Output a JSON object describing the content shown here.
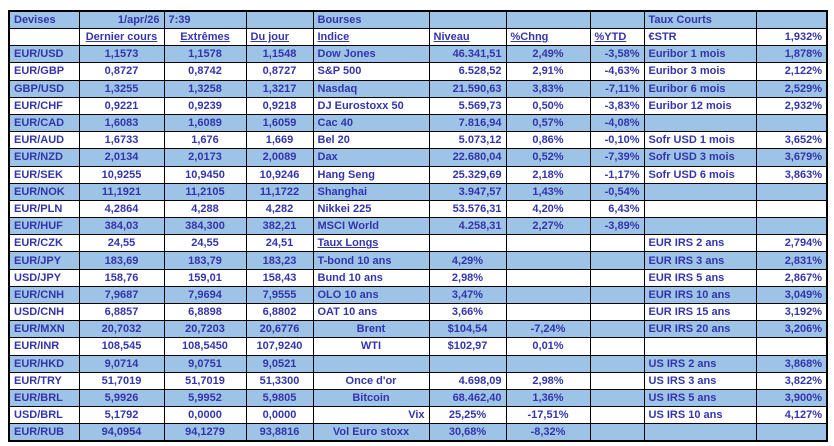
{
  "colors": {
    "row_blue": "#9DC3E6",
    "row_white": "#FFFFFF",
    "text_indigo": "#3434AC",
    "grid_border": "#000000"
  },
  "table": {
    "rows": [
      {
        "cells": [
          {
            "t": "Devises",
            "n": "section-title-devises"
          },
          {
            "t": "1/apr/26",
            "a": "r",
            "n": "date"
          },
          {
            "t": "7:39",
            "a": "l",
            "n": "time"
          },
          {
            "t": ""
          },
          {
            "t": "Bourses",
            "n": "section-title-bourses"
          },
          {
            "t": ""
          },
          {
            "t": ""
          },
          {
            "t": ""
          },
          {
            "t": "Taux Courts",
            "n": "section-title-taux-courts"
          },
          {
            "t": ""
          }
        ]
      },
      {
        "cells": [
          {
            "t": ""
          },
          {
            "t": "Dernier cours",
            "u": true,
            "n": "column-header"
          },
          {
            "t": "Extrêmes",
            "u": true,
            "n": "column-header"
          },
          {
            "t": "Du jour",
            "a": "l",
            "u": true,
            "n": "column-header"
          },
          {
            "t": "Indice",
            "u": true,
            "n": "column-header"
          },
          {
            "t": "Niveau",
            "a": "l",
            "u": true,
            "n": "column-header"
          },
          {
            "t": "%Chng",
            "a": "l",
            "u": true,
            "n": "column-header"
          },
          {
            "t": "%YTD",
            "a": "l",
            "u": true,
            "n": "column-header"
          },
          {
            "t": "€STR",
            "n": "rate-label"
          },
          {
            "t": "1,932%"
          }
        ]
      },
      {
        "cells": [
          {
            "t": "EUR/USD"
          },
          {
            "t": "1,1573"
          },
          {
            "t": "1,1578"
          },
          {
            "t": "1,1548"
          },
          {
            "t": "Dow Jones"
          },
          {
            "t": "46.341,51"
          },
          {
            "t": "2,49%"
          },
          {
            "t": "-3,58%"
          },
          {
            "t": "Euribor 1 mois"
          },
          {
            "t": "1,878%"
          }
        ]
      },
      {
        "cells": [
          {
            "t": "EUR/GBP"
          },
          {
            "t": "0,8727"
          },
          {
            "t": "0,8742"
          },
          {
            "t": "0,8727"
          },
          {
            "t": "S&P 500"
          },
          {
            "t": "6.528,52"
          },
          {
            "t": "2,91%"
          },
          {
            "t": "-4,63%"
          },
          {
            "t": "Euribor 3 mois"
          },
          {
            "t": "2,122%"
          }
        ]
      },
      {
        "cells": [
          {
            "t": "GBP/USD"
          },
          {
            "t": "1,3255"
          },
          {
            "t": "1,3258"
          },
          {
            "t": "1,3217"
          },
          {
            "t": "Nasdaq"
          },
          {
            "t": "21.590,63"
          },
          {
            "t": "3,83%"
          },
          {
            "t": "-7,11%"
          },
          {
            "t": "Euribor 6 mois"
          },
          {
            "t": "2,529%"
          }
        ]
      },
      {
        "cells": [
          {
            "t": "EUR/CHF"
          },
          {
            "t": "0,9221"
          },
          {
            "t": "0,9239"
          },
          {
            "t": "0,9218"
          },
          {
            "t": "DJ Eurostoxx 50"
          },
          {
            "t": "5.569,73"
          },
          {
            "t": "0,50%"
          },
          {
            "t": "-3,83%"
          },
          {
            "t": "Euribor 12 mois"
          },
          {
            "t": "2,932%"
          }
        ]
      },
      {
        "cells": [
          {
            "t": "EUR/CAD"
          },
          {
            "t": "1,6083"
          },
          {
            "t": "1,6089"
          },
          {
            "t": "1,6059"
          },
          {
            "t": "Cac 40"
          },
          {
            "t": "7.816,94"
          },
          {
            "t": "0,57%"
          },
          {
            "t": "-4,08%"
          },
          {
            "t": ""
          },
          {
            "t": ""
          }
        ]
      },
      {
        "cells": [
          {
            "t": "EUR/AUD"
          },
          {
            "t": "1,6733"
          },
          {
            "t": "1,676"
          },
          {
            "t": "1,669"
          },
          {
            "t": "Bel 20"
          },
          {
            "t": "5.073,12"
          },
          {
            "t": "0,86%"
          },
          {
            "t": "-0,10%"
          },
          {
            "t": "Sofr USD 1 mois"
          },
          {
            "t": "3,652%"
          }
        ]
      },
      {
        "cells": [
          {
            "t": "EUR/NZD"
          },
          {
            "t": "2,0134"
          },
          {
            "t": "2,0173"
          },
          {
            "t": "2,0089"
          },
          {
            "t": "Dax"
          },
          {
            "t": "22.680,04"
          },
          {
            "t": "0,52%"
          },
          {
            "t": "-7,39%"
          },
          {
            "t": "Sofr USD 3 mois"
          },
          {
            "t": "3,679%"
          }
        ]
      },
      {
        "cells": [
          {
            "t": "EUR/SEK"
          },
          {
            "t": "10,9255"
          },
          {
            "t": "10,9450"
          },
          {
            "t": "10,9246"
          },
          {
            "t": "Hang Seng"
          },
          {
            "t": "25.329,69"
          },
          {
            "t": "2,18%"
          },
          {
            "t": "-1,17%"
          },
          {
            "t": "Sofr USD 6 mois"
          },
          {
            "t": "3,863%"
          }
        ]
      },
      {
        "cells": [
          {
            "t": "EUR/NOK"
          },
          {
            "t": "11,1921"
          },
          {
            "t": "11,2105"
          },
          {
            "t": "11,1722"
          },
          {
            "t": "Shanghai"
          },
          {
            "t": "3.947,57"
          },
          {
            "t": "1,43%"
          },
          {
            "t": "-0,54%"
          },
          {
            "t": ""
          },
          {
            "t": ""
          }
        ]
      },
      {
        "cells": [
          {
            "t": "EUR/PLN"
          },
          {
            "t": "4,2864"
          },
          {
            "t": "4,288"
          },
          {
            "t": "4,282"
          },
          {
            "t": "Nikkei 225"
          },
          {
            "t": "53.576,31"
          },
          {
            "t": "4,20%"
          },
          {
            "t": "6,43%"
          },
          {
            "t": ""
          },
          {
            "t": ""
          }
        ]
      },
      {
        "cells": [
          {
            "t": "EUR/HUF"
          },
          {
            "t": "384,03"
          },
          {
            "t": "384,300"
          },
          {
            "t": "382,21"
          },
          {
            "t": "MSCI World"
          },
          {
            "t": "4.258,31"
          },
          {
            "t": "2,27%"
          },
          {
            "t": "-3,89%"
          },
          {
            "t": ""
          },
          {
            "t": ""
          }
        ]
      },
      {
        "cells": [
          {
            "t": "EUR/CZK"
          },
          {
            "t": "24,55"
          },
          {
            "t": "24,55"
          },
          {
            "t": "24,51"
          },
          {
            "t": "Taux Longs",
            "u": true,
            "n": "section-title-taux-longs"
          },
          {
            "t": ""
          },
          {
            "t": ""
          },
          {
            "t": ""
          },
          {
            "t": "EUR IRS 2 ans"
          },
          {
            "t": "2,794%"
          }
        ]
      },
      {
        "cells": [
          {
            "t": "EUR/JPY"
          },
          {
            "t": "183,69"
          },
          {
            "t": "183,79"
          },
          {
            "t": "183,23"
          },
          {
            "t": "T-bond 10 ans"
          },
          {
            "t": "4,29%",
            "a": "c"
          },
          {
            "t": ""
          },
          {
            "t": ""
          },
          {
            "t": "EUR IRS 3 ans"
          },
          {
            "t": "2,831%"
          }
        ]
      },
      {
        "cells": [
          {
            "t": "USD/JPY"
          },
          {
            "t": "158,76"
          },
          {
            "t": "159,01"
          },
          {
            "t": "158,43"
          },
          {
            "t": "Bund 10 ans"
          },
          {
            "t": "2,98%",
            "a": "c"
          },
          {
            "t": ""
          },
          {
            "t": ""
          },
          {
            "t": "EUR IRS 5 ans"
          },
          {
            "t": "2,867%"
          }
        ]
      },
      {
        "cells": [
          {
            "t": "EUR/CNH"
          },
          {
            "t": "7,9687"
          },
          {
            "t": "7,9694"
          },
          {
            "t": "7,9555"
          },
          {
            "t": "OLO 10 ans"
          },
          {
            "t": "3,47%",
            "a": "c"
          },
          {
            "t": ""
          },
          {
            "t": ""
          },
          {
            "t": "EUR IRS 10 ans"
          },
          {
            "t": "3,049%"
          }
        ]
      },
      {
        "cells": [
          {
            "t": "USD/CNH"
          },
          {
            "t": "6,8857"
          },
          {
            "t": "6,8898"
          },
          {
            "t": "6,8802"
          },
          {
            "t": "OAT 10 ans"
          },
          {
            "t": "3,66%",
            "a": "c"
          },
          {
            "t": ""
          },
          {
            "t": ""
          },
          {
            "t": "EUR IRS 15 ans"
          },
          {
            "t": "3,192%"
          }
        ]
      },
      {
        "cells": [
          {
            "t": "EUR/MXN"
          },
          {
            "t": "20,7032"
          },
          {
            "t": "20,7203"
          },
          {
            "t": "20,6776"
          },
          {
            "t": "Brent",
            "a": "c"
          },
          {
            "t": "$104,54",
            "a": "c"
          },
          {
            "t": "-7,24%"
          },
          {
            "t": ""
          },
          {
            "t": "EUR IRS 20 ans"
          },
          {
            "t": "3,206%"
          }
        ]
      },
      {
        "cells": [
          {
            "t": "EUR/INR"
          },
          {
            "t": "108,545"
          },
          {
            "t": "108,5450"
          },
          {
            "t": "107,9240"
          },
          {
            "t": "WTI",
            "a": "c"
          },
          {
            "t": "$102,97",
            "a": "c"
          },
          {
            "t": "0,01%"
          },
          {
            "t": ""
          },
          {
            "t": ""
          },
          {
            "t": ""
          }
        ]
      },
      {
        "cells": [
          {
            "t": "EUR/HKD"
          },
          {
            "t": "9,0714"
          },
          {
            "t": "9,0751"
          },
          {
            "t": "9,0521"
          },
          {
            "t": ""
          },
          {
            "t": ""
          },
          {
            "t": ""
          },
          {
            "t": ""
          },
          {
            "t": "US IRS 2 ans"
          },
          {
            "t": "3,868%"
          }
        ]
      },
      {
        "cells": [
          {
            "t": "EUR/TRY"
          },
          {
            "t": "51,7019"
          },
          {
            "t": "51,7019"
          },
          {
            "t": "51,3300"
          },
          {
            "t": "Once d'or",
            "a": "c"
          },
          {
            "t": "4.698,09"
          },
          {
            "t": "2,98%"
          },
          {
            "t": ""
          },
          {
            "t": "US IRS 3 ans"
          },
          {
            "t": "3,822%"
          }
        ]
      },
      {
        "cells": [
          {
            "t": "EUR/BRL"
          },
          {
            "t": "5,9926"
          },
          {
            "t": "5,9952"
          },
          {
            "t": "5,9805"
          },
          {
            "t": "Bitcoin",
            "a": "c"
          },
          {
            "t": "68.462,40"
          },
          {
            "t": "1,36%"
          },
          {
            "t": ""
          },
          {
            "t": "US IRS 5 ans"
          },
          {
            "t": "3,900%"
          }
        ]
      },
      {
        "cells": [
          {
            "t": "USD/BRL"
          },
          {
            "t": "5,1792"
          },
          {
            "t": "0,0000"
          },
          {
            "t": "0,0000"
          },
          {
            "t": "Vix",
            "a": "r"
          },
          {
            "t": "25,25%",
            "a": "c"
          },
          {
            "t": "-17,51%"
          },
          {
            "t": ""
          },
          {
            "t": "US IRS 10 ans"
          },
          {
            "t": "4,127%"
          }
        ]
      },
      {
        "cells": [
          {
            "t": "EUR/RUB"
          },
          {
            "t": "94,0954"
          },
          {
            "t": "94,1279"
          },
          {
            "t": "93,8816"
          },
          {
            "t": "Vol Euro stoxx",
            "a": "c"
          },
          {
            "t": "30,68%",
            "a": "c"
          },
          {
            "t": "-8,32%"
          },
          {
            "t": ""
          },
          {
            "t": ""
          },
          {
            "t": ""
          }
        ]
      }
    ]
  }
}
